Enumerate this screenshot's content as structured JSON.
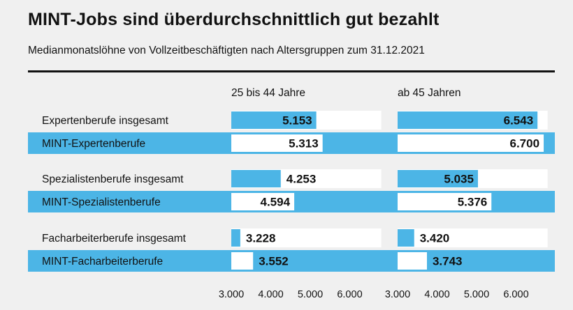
{
  "title": "MINT-Jobs sind überdurchschnittlich gut bezahlt",
  "subtitle": "Medianmonatslöhne von Vollzeitbeschäftigten nach Altersgruppen zum 31.12.2021",
  "colors": {
    "blue": "#4cb5e6",
    "band": "#ffffff",
    "background": "#f0f0f0",
    "text": "#111111"
  },
  "chart_data": {
    "type": "bar",
    "orientation": "horizontal",
    "panels": [
      "25 bis 44 Jahre",
      "ab 45 Jahren"
    ],
    "categories": [
      "Expertenberufe insgesamt",
      "MINT-Expertenberufe",
      "Spezialistenberufe insgesamt",
      "MINT-Spezialistenberufe",
      "Facharbeiterberufe insgesamt",
      "MINT-Facharbeiterberufe"
    ],
    "mint": [
      false,
      true,
      false,
      true,
      false,
      true
    ],
    "series": [
      {
        "name": "25 bis 44 Jahre",
        "values": [
          5153,
          5313,
          4253,
          4594,
          3228,
          3552
        ],
        "labels": [
          "5.153",
          "5.313",
          "4.253",
          "4.594",
          "3.228",
          "3.552"
        ]
      },
      {
        "name": "ab 45 Jahren",
        "values": [
          6543,
          6700,
          5035,
          5376,
          3420,
          3743
        ],
        "labels": [
          "6.543",
          "6.700",
          "5.035",
          "5.376",
          "3.420",
          "3.743"
        ]
      }
    ],
    "xlim": [
      3000,
      6800
    ],
    "ticks": [
      3000,
      4000,
      5000,
      6000
    ],
    "tick_labels": [
      "3.000",
      "4.000",
      "5.000",
      "6.000"
    ],
    "grid": false
  }
}
